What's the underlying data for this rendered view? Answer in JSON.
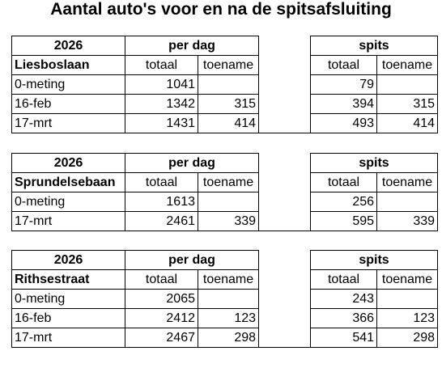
{
  "title": "Aantal auto's voor en na de spitsafsluiting",
  "tables": [
    {
      "year": "2026",
      "street": "Liesboslaan",
      "per_dag": "per dag",
      "spits": "spits",
      "col_totaal": "totaal",
      "col_toename": "toename",
      "rows": [
        {
          "label": "0-meting",
          "dag_totaal": "1041",
          "dag_toename": "",
          "spits_totaal": "79",
          "spits_toename": ""
        },
        {
          "label": "16-feb",
          "dag_totaal": "1342",
          "dag_toename": "315",
          "spits_totaal": "394",
          "spits_toename": "315"
        },
        {
          "label": "17-mrt",
          "dag_totaal": "1431",
          "dag_toename": "414",
          "spits_totaal": "493",
          "spits_toename": "414"
        }
      ]
    },
    {
      "year": "2026",
      "street": "Sprundelsebaan",
      "per_dag": "per dag",
      "spits": "spits",
      "col_totaal": "totaal",
      "col_toename": "toename",
      "rows": [
        {
          "label": "0-meting",
          "dag_totaal": "1613",
          "dag_toename": "",
          "spits_totaal": "256",
          "spits_toename": ""
        },
        {
          "label": "17-mrt",
          "dag_totaal": "2461",
          "dag_toename": "339",
          "spits_totaal": "595",
          "spits_toename": "339"
        }
      ]
    },
    {
      "year": "2026",
      "street": "Rithsestraat",
      "per_dag": "per dag",
      "spits": "spits",
      "col_totaal": "totaal",
      "col_toename": "toename",
      "rows": [
        {
          "label": "0-meting",
          "dag_totaal": "2065",
          "dag_toename": "",
          "spits_totaal": "243",
          "spits_toename": ""
        },
        {
          "label": "16-feb",
          "dag_totaal": "2412",
          "dag_toename": "123",
          "spits_totaal": "366",
          "spits_toename": "123"
        },
        {
          "label": "17-mrt",
          "dag_totaal": "2467",
          "dag_toename": "298",
          "spits_totaal": "541",
          "spits_toename": "298"
        }
      ]
    }
  ]
}
